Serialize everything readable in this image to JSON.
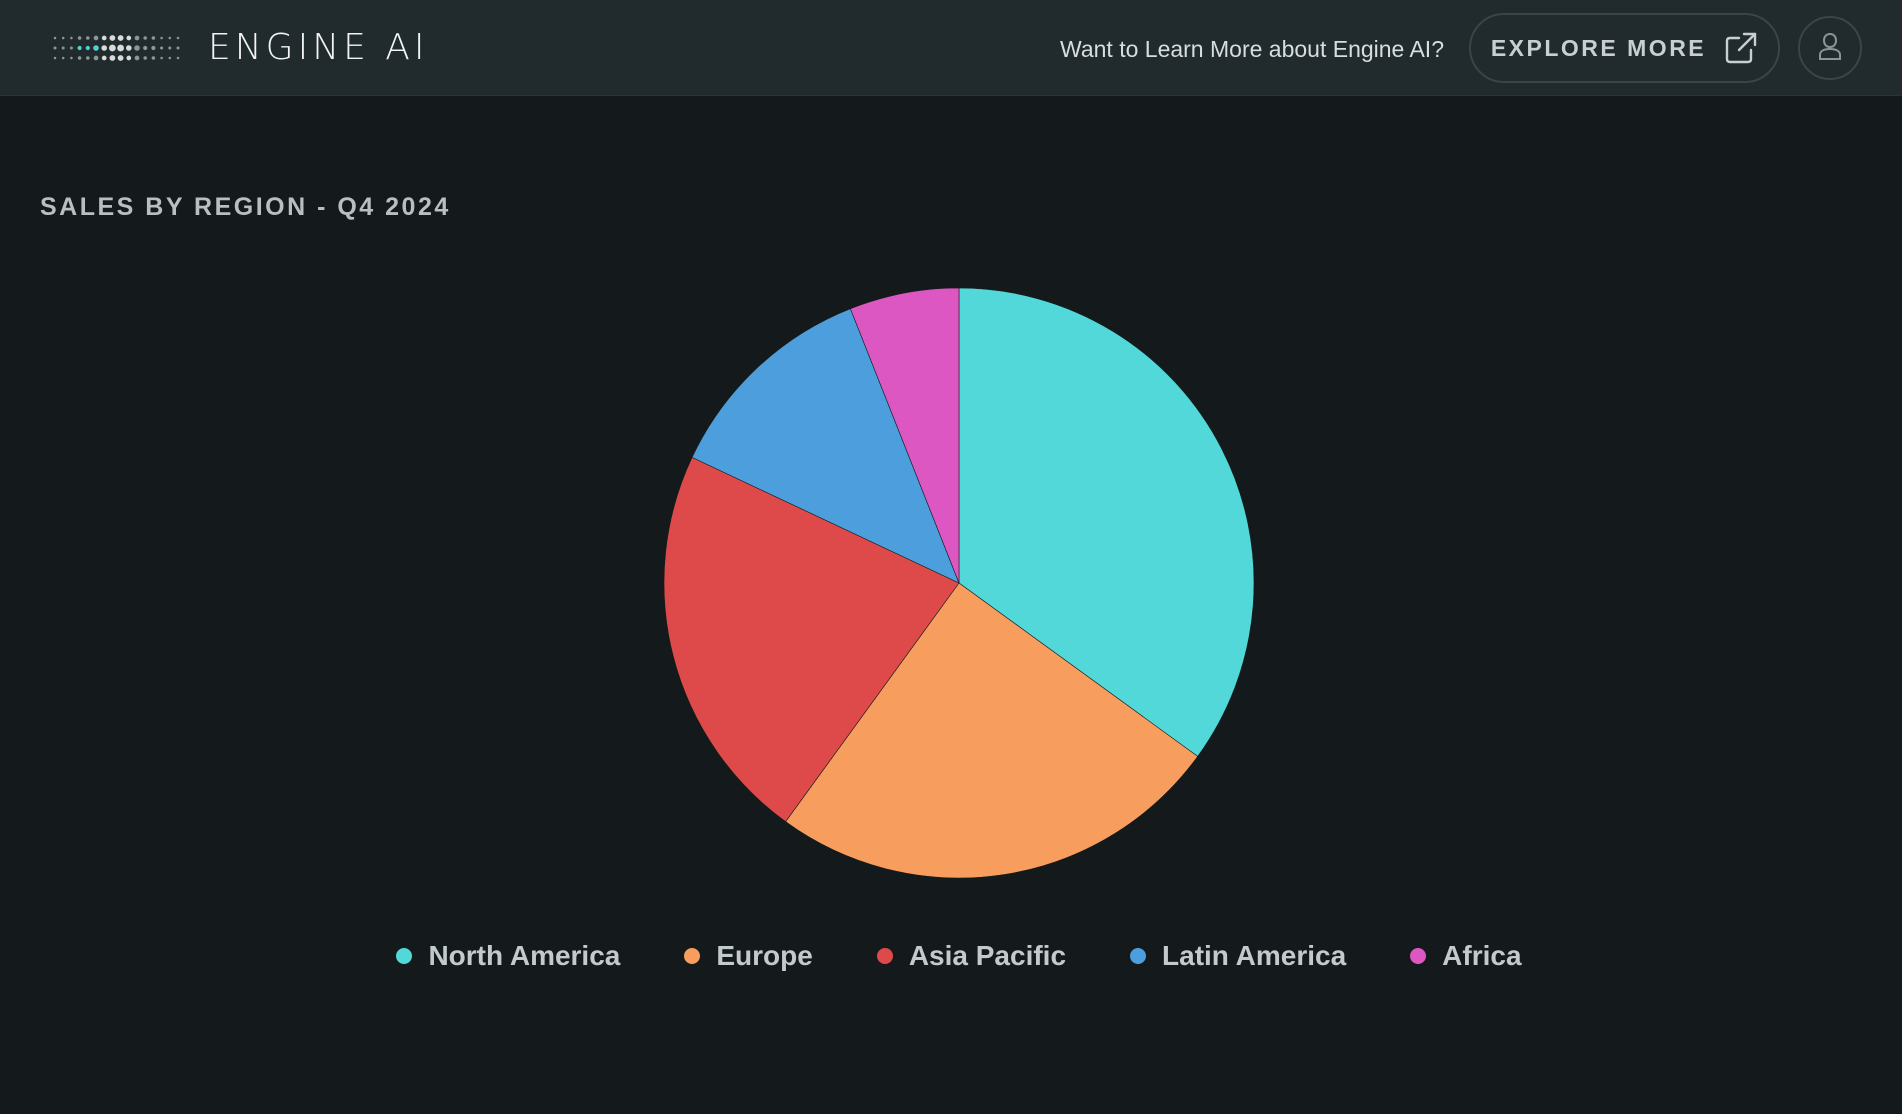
{
  "header": {
    "brand": "ENGINE AI",
    "promo_text": "Want to Learn More about Engine AI?",
    "explore_label": "EXPLORE MORE",
    "explore_icon": "external-link-icon",
    "avatar_icon": "user-icon"
  },
  "colors": {
    "header_bg": "#212a2d",
    "page_bg": "#141a1b",
    "logo_accent": "#4fd1d1"
  },
  "chart_data": {
    "type": "pie",
    "title": "SALES BY REGION - Q4 2024",
    "categories": [
      "North America",
      "Europe",
      "Asia Pacific",
      "Latin America",
      "Africa"
    ],
    "values": [
      35,
      25,
      22,
      12,
      6
    ],
    "colors": [
      "#52d8d8",
      "#f79e5e",
      "#de4a4a",
      "#4c9fdc",
      "#dc57c1"
    ],
    "legend_position": "bottom-center",
    "start_angle": "12 o'clock",
    "direction": "clockwise"
  }
}
